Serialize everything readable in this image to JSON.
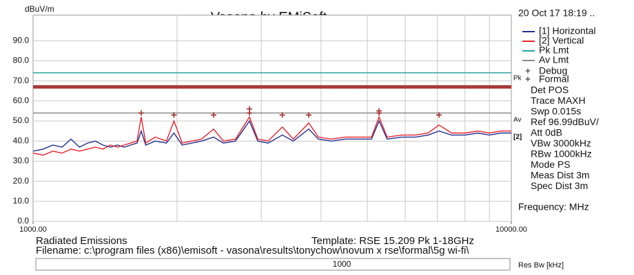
{
  "chart_data": {
    "type": "line",
    "title": "Vasona by EMiSoft",
    "ylabel": "dBuV/m",
    "timestamp": "20 Oct 17 18:19 ..",
    "xlabel": "Frequency: MHz",
    "xscale": "log",
    "xlim": [
      1000,
      10000
    ],
    "xticks": [
      {
        "value": 1000,
        "label": "1000.00"
      },
      {
        "value": 10000,
        "label": "10000.00"
      }
    ],
    "xgrid": [
      2000,
      3000,
      4000,
      5000,
      6000,
      7000,
      8000,
      9000
    ],
    "ylim": [
      0,
      100
    ],
    "yticks": [
      {
        "value": 0,
        "label": "0.0"
      },
      {
        "value": 10,
        "label": "10.0"
      },
      {
        "value": 20,
        "label": "20.0"
      },
      {
        "value": 30,
        "label": "30.0"
      },
      {
        "value": 40,
        "label": "40.0"
      },
      {
        "value": 50,
        "label": "50.0"
      },
      {
        "value": 60,
        "label": "60.0"
      },
      {
        "value": 70,
        "label": "70.0"
      },
      {
        "value": 80,
        "label": "80.0"
      },
      {
        "value": 90,
        "label": "90.0"
      }
    ],
    "grid": true,
    "x": [
      1000,
      1050,
      1100,
      1150,
      1200,
      1250,
      1300,
      1350,
      1400,
      1450,
      1500,
      1550,
      1600,
      1650,
      1683,
      1720,
      1800,
      1900,
      1970,
      2050,
      2150,
      2250,
      2385,
      2500,
      2650,
      2834,
      2950,
      3100,
      3320,
      3500,
      3770,
      3950,
      4200,
      4500,
      4800,
      5100,
      5290,
      5500,
      5900,
      6300,
      6700,
      7060,
      7500,
      8000,
      8500,
      9000,
      9500,
      10000
    ],
    "series": [
      {
        "name": "[1] Horizontal",
        "color": "#1f2f8f",
        "values": [
          35,
          36,
          38,
          37,
          41,
          37,
          39,
          40,
          38,
          37,
          38,
          37,
          38,
          39,
          45,
          38,
          40,
          39,
          44,
          38,
          39,
          40,
          42,
          39,
          40,
          50,
          40,
          39,
          43,
          40,
          46,
          41,
          40,
          41,
          41,
          41,
          50,
          41,
          42,
          42,
          43,
          45,
          43,
          43,
          44,
          43,
          44,
          44
        ]
      },
      {
        "name": "[2] Vertical",
        "color": "#e8202a",
        "values": [
          34,
          33,
          35,
          34,
          36,
          35,
          36,
          37,
          36,
          38,
          37,
          38,
          39,
          40,
          52,
          39,
          42,
          40,
          50,
          39,
          40,
          41,
          46,
          40,
          41,
          52,
          41,
          40,
          47,
          41,
          49,
          42,
          41,
          42,
          42,
          42,
          52,
          42,
          43,
          43,
          44,
          48,
          44,
          44,
          45,
          44,
          45,
          45
        ]
      }
    ],
    "limits": [
      {
        "name": "Pk Lmt",
        "color": "#2aa39a",
        "value": 74
      },
      {
        "name": "Av Lmt",
        "color": "#8a8a8a",
        "value": 54
      }
    ],
    "bands": [
      {
        "color": "#a83838",
        "value": 67
      }
    ],
    "peaks": {
      "color": "#a02020",
      "x": [
        1683,
        1970,
        2385,
        2834,
        2834,
        3320,
        3770,
        5290,
        5290,
        7060
      ],
      "values": [
        54,
        53,
        53,
        56,
        54,
        53,
        53,
        55,
        54,
        53
      ]
    },
    "legend_extra": [
      "Debug",
      "Formal"
    ],
    "side_labels": [
      "Pk",
      "Av",
      "[2]"
    ],
    "info": [
      "Det POS",
      "Trace MAXH",
      "Swp  0.015s",
      "Ref  96.99dBuV/",
      "Att  0dB",
      "VBw 3000kHz",
      "RBw 1000kHz",
      "Mode PS",
      "Meas Dist 3m",
      "Spec Dist 3m"
    ],
    "footer": {
      "test": "Radiated Emissions",
      "template": "Template: RSE 15.209 Pk 1-18GHz",
      "filename": "Filename: c:\\program files (x86)\\emisoft - vasona\\results\\tonychow\\novum x rse\\formal\\5g wi-fi\\",
      "input": "1000",
      "input_label": "Res Bw [kHz]"
    }
  }
}
